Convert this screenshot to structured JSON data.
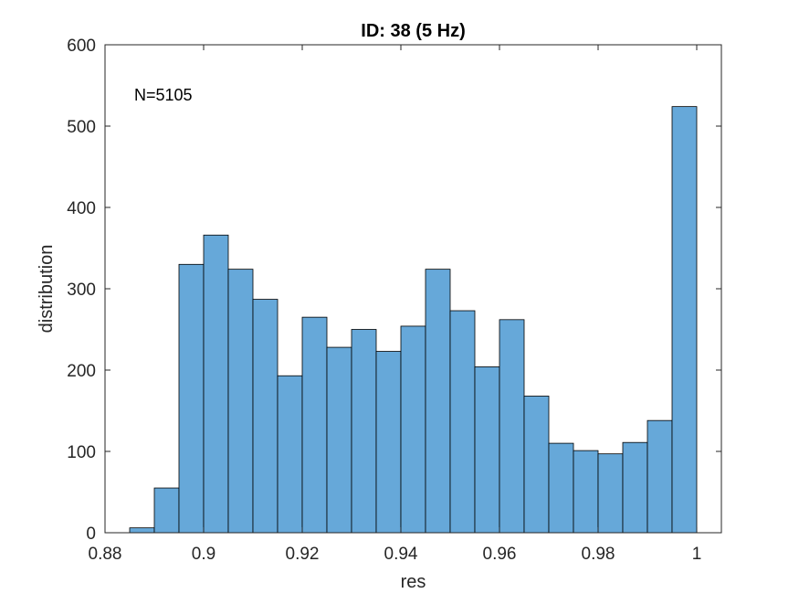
{
  "chart_data": {
    "type": "bar",
    "title": "ID: 38 (5 Hz)",
    "xlabel": "res",
    "ylabel": "distribution",
    "annotation": "N=5105",
    "xlim": [
      0.88,
      1.005
    ],
    "ylim": [
      0,
      600
    ],
    "xticks": [
      0.88,
      0.9,
      0.92,
      0.94,
      0.96,
      0.98,
      1
    ],
    "xtick_labels": [
      "0.88",
      "0.9",
      "0.92",
      "0.94",
      "0.96",
      "0.98",
      "1"
    ],
    "yticks": [
      0,
      100,
      200,
      300,
      400,
      500,
      600
    ],
    "ytick_labels": [
      "0",
      "100",
      "200",
      "300",
      "400",
      "500",
      "600"
    ],
    "grid": false,
    "bin_edges": [
      0.885,
      0.89,
      0.895,
      0.9,
      0.905,
      0.91,
      0.915,
      0.92,
      0.925,
      0.93,
      0.935,
      0.94,
      0.945,
      0.95,
      0.955,
      0.96,
      0.965,
      0.97,
      0.975,
      0.98,
      0.985,
      0.99,
      0.995,
      1.0
    ],
    "values": [
      6,
      55,
      330,
      366,
      324,
      287,
      193,
      265,
      228,
      250,
      223,
      254,
      324,
      273,
      204,
      262,
      168,
      110,
      101,
      97,
      111,
      138,
      524
    ],
    "colors": {
      "bar_fill": "#66a8d9",
      "bar_edge": "#000000",
      "axis": "#262626"
    }
  }
}
